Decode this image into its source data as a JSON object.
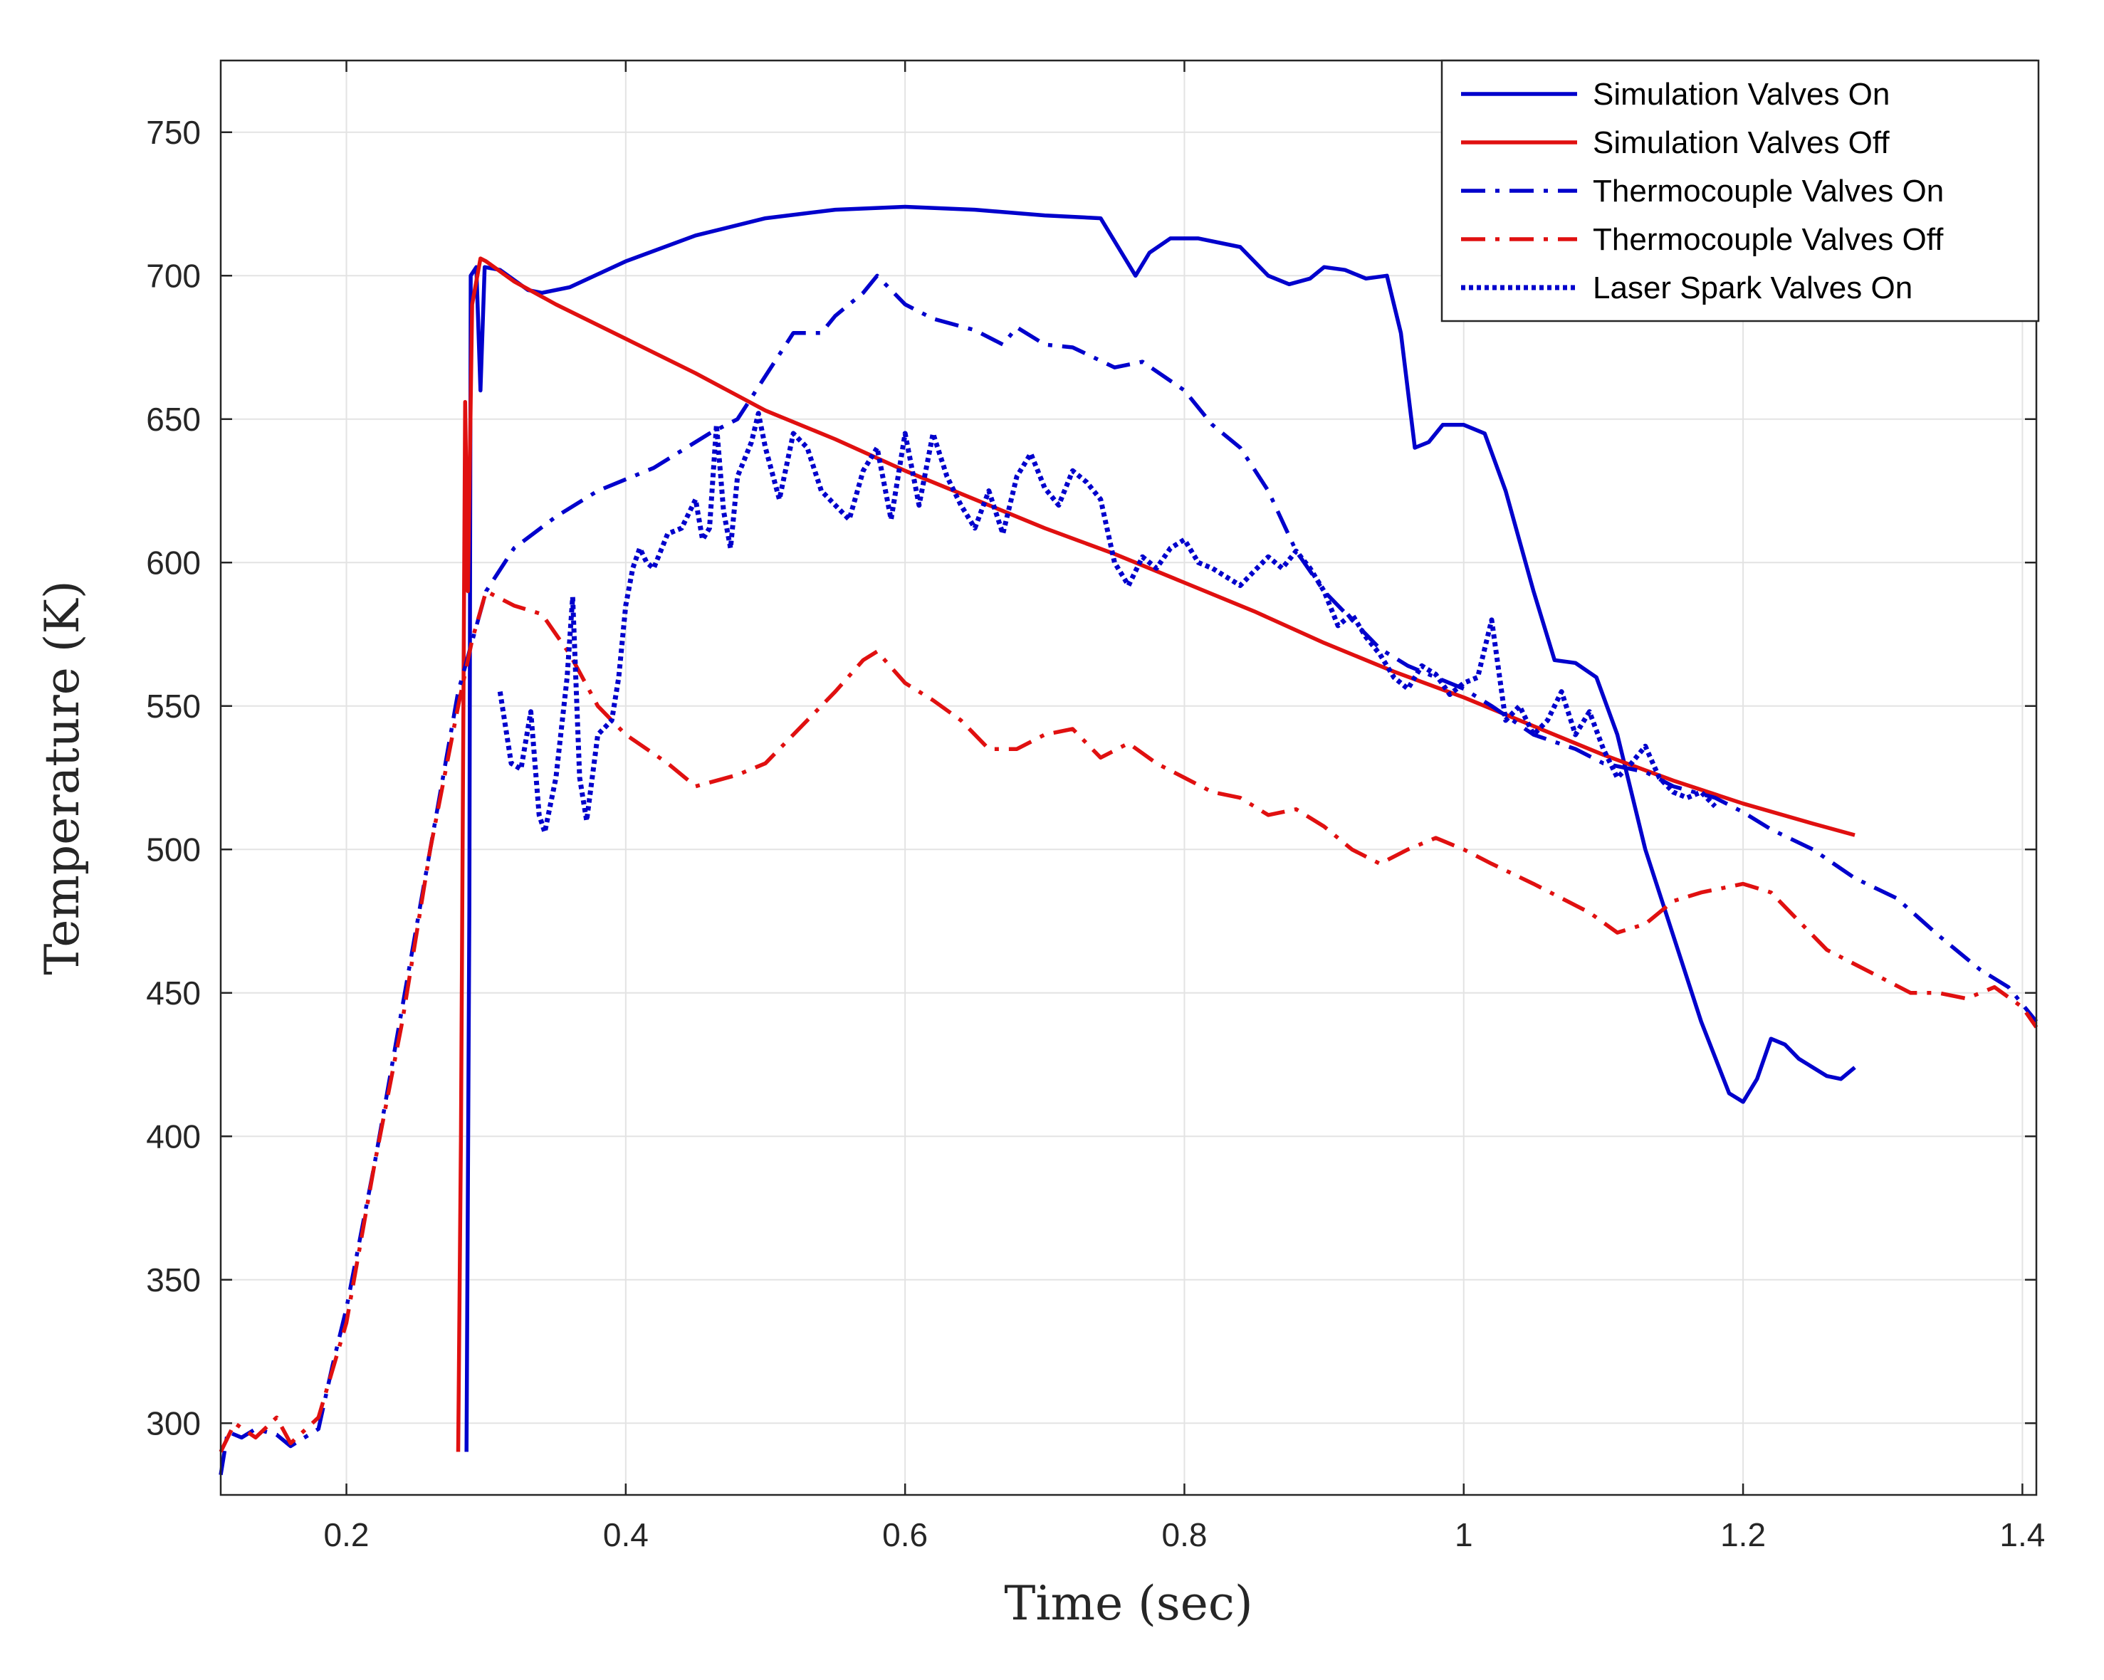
{
  "chart_data": {
    "type": "line",
    "title": "",
    "xlabel": "Time (sec)",
    "ylabel": "Temperature (K)",
    "xlim": [
      0.11,
      1.41
    ],
    "ylim": [
      275,
      775
    ],
    "xticks": [
      0.2,
      0.4,
      0.6,
      0.8,
      1,
      1.2,
      1.4
    ],
    "xtick_labels": [
      "0.2",
      "0.4",
      "0.6",
      "0.8",
      "1",
      "1.2",
      "1.4"
    ],
    "yticks": [
      300,
      350,
      400,
      450,
      500,
      550,
      600,
      650,
      700,
      750
    ],
    "ytick_labels": [
      "300",
      "350",
      "400",
      "450",
      "500",
      "550",
      "600",
      "650",
      "700",
      "750"
    ],
    "grid": true,
    "legend_position": "top-right",
    "series": [
      {
        "name": "Simulation Valves On",
        "color": "#0000cc",
        "style": "solid",
        "points": [
          [
            0.286,
            290
          ],
          [
            0.288,
            480
          ],
          [
            0.289,
            700
          ],
          [
            0.293,
            703
          ],
          [
            0.296,
            660
          ],
          [
            0.299,
            703
          ],
          [
            0.31,
            702
          ],
          [
            0.33,
            695
          ],
          [
            0.34,
            694
          ],
          [
            0.36,
            696
          ],
          [
            0.4,
            705
          ],
          [
            0.45,
            714
          ],
          [
            0.5,
            720
          ],
          [
            0.55,
            723
          ],
          [
            0.6,
            724
          ],
          [
            0.65,
            723
          ],
          [
            0.7,
            721
          ],
          [
            0.74,
            720
          ],
          [
            0.755,
            708
          ],
          [
            0.765,
            700
          ],
          [
            0.775,
            708
          ],
          [
            0.79,
            713
          ],
          [
            0.81,
            713
          ],
          [
            0.84,
            710
          ],
          [
            0.86,
            700
          ],
          [
            0.875,
            697
          ],
          [
            0.89,
            699
          ],
          [
            0.9,
            703
          ],
          [
            0.915,
            702
          ],
          [
            0.93,
            699
          ],
          [
            0.945,
            700
          ],
          [
            0.955,
            680
          ],
          [
            0.965,
            640
          ],
          [
            0.975,
            642
          ],
          [
            0.985,
            648
          ],
          [
            1.0,
            648
          ],
          [
            1.015,
            645
          ],
          [
            1.03,
            625
          ],
          [
            1.05,
            590
          ],
          [
            1.065,
            566
          ],
          [
            1.08,
            565
          ],
          [
            1.095,
            560
          ],
          [
            1.11,
            540
          ],
          [
            1.13,
            500
          ],
          [
            1.15,
            470
          ],
          [
            1.17,
            440
          ],
          [
            1.19,
            415
          ],
          [
            1.2,
            412
          ],
          [
            1.21,
            420
          ],
          [
            1.22,
            434
          ],
          [
            1.23,
            432
          ],
          [
            1.24,
            427
          ],
          [
            1.26,
            421
          ],
          [
            1.27,
            420
          ],
          [
            1.28,
            424
          ]
        ]
      },
      {
        "name": "Simulation Valves Off",
        "color": "#e01010",
        "style": "solid",
        "points": [
          [
            0.28,
            290
          ],
          [
            0.282,
            400
          ],
          [
            0.285,
            656
          ],
          [
            0.287,
            590
          ],
          [
            0.29,
            690
          ],
          [
            0.296,
            706
          ],
          [
            0.3,
            705
          ],
          [
            0.32,
            698
          ],
          [
            0.35,
            690
          ],
          [
            0.4,
            678
          ],
          [
            0.45,
            666
          ],
          [
            0.5,
            653
          ],
          [
            0.55,
            643
          ],
          [
            0.6,
            632
          ],
          [
            0.65,
            622
          ],
          [
            0.7,
            612
          ],
          [
            0.75,
            603
          ],
          [
            0.8,
            593
          ],
          [
            0.85,
            583
          ],
          [
            0.9,
            572
          ],
          [
            0.95,
            562
          ],
          [
            1.0,
            553
          ],
          [
            1.05,
            543
          ],
          [
            1.1,
            533
          ],
          [
            1.15,
            524
          ],
          [
            1.2,
            516
          ],
          [
            1.25,
            509
          ],
          [
            1.28,
            505
          ]
        ]
      },
      {
        "name": "Thermocouple Valves On",
        "color": "#0000cc",
        "style": "dashdot",
        "points": [
          [
            0.11,
            282
          ],
          [
            0.115,
            297
          ],
          [
            0.125,
            295
          ],
          [
            0.135,
            298
          ],
          [
            0.15,
            296
          ],
          [
            0.16,
            292
          ],
          [
            0.18,
            298
          ],
          [
            0.19,
            320
          ],
          [
            0.2,
            340
          ],
          [
            0.22,
            390
          ],
          [
            0.24,
            445
          ],
          [
            0.26,
            500
          ],
          [
            0.28,
            555
          ],
          [
            0.3,
            590
          ],
          [
            0.32,
            605
          ],
          [
            0.35,
            616
          ],
          [
            0.38,
            625
          ],
          [
            0.42,
            633
          ],
          [
            0.46,
            645
          ],
          [
            0.48,
            650
          ],
          [
            0.5,
            665
          ],
          [
            0.52,
            680
          ],
          [
            0.54,
            680
          ],
          [
            0.55,
            686
          ],
          [
            0.57,
            694
          ],
          [
            0.58,
            700
          ],
          [
            0.59,
            695
          ],
          [
            0.6,
            690
          ],
          [
            0.62,
            685
          ],
          [
            0.65,
            681
          ],
          [
            0.67,
            676
          ],
          [
            0.68,
            682
          ],
          [
            0.7,
            676
          ],
          [
            0.72,
            675
          ],
          [
            0.75,
            668
          ],
          [
            0.77,
            670
          ],
          [
            0.8,
            660
          ],
          [
            0.82,
            648
          ],
          [
            0.84,
            640
          ],
          [
            0.86,
            625
          ],
          [
            0.88,
            604
          ],
          [
            0.9,
            590
          ],
          [
            0.92,
            580
          ],
          [
            0.94,
            570
          ],
          [
            0.96,
            564
          ],
          [
            0.98,
            560
          ],
          [
            1.0,
            556
          ],
          [
            1.02,
            550
          ],
          [
            1.05,
            540
          ],
          [
            1.08,
            535
          ],
          [
            1.1,
            530
          ],
          [
            1.13,
            527
          ],
          [
            1.15,
            522
          ],
          [
            1.18,
            518
          ],
          [
            1.2,
            513
          ],
          [
            1.22,
            507
          ],
          [
            1.25,
            500
          ],
          [
            1.28,
            490
          ],
          [
            1.31,
            483
          ],
          [
            1.34,
            470
          ],
          [
            1.37,
            458
          ],
          [
            1.39,
            452
          ],
          [
            1.41,
            440
          ]
        ]
      },
      {
        "name": "Thermocouple Valves Off",
        "color": "#e01010",
        "style": "dashdot",
        "points": [
          [
            0.11,
            290
          ],
          [
            0.12,
            300
          ],
          [
            0.135,
            295
          ],
          [
            0.15,
            302
          ],
          [
            0.16,
            293
          ],
          [
            0.18,
            302
          ],
          [
            0.2,
            335
          ],
          [
            0.22,
            390
          ],
          [
            0.24,
            440
          ],
          [
            0.26,
            500
          ],
          [
            0.28,
            550
          ],
          [
            0.29,
            573
          ],
          [
            0.3,
            590
          ],
          [
            0.32,
            585
          ],
          [
            0.34,
            582
          ],
          [
            0.36,
            568
          ],
          [
            0.38,
            550
          ],
          [
            0.4,
            540
          ],
          [
            0.43,
            530
          ],
          [
            0.45,
            522
          ],
          [
            0.48,
            526
          ],
          [
            0.5,
            530
          ],
          [
            0.53,
            545
          ],
          [
            0.55,
            555
          ],
          [
            0.57,
            566
          ],
          [
            0.58,
            569
          ],
          [
            0.6,
            558
          ],
          [
            0.62,
            552
          ],
          [
            0.64,
            545
          ],
          [
            0.66,
            535
          ],
          [
            0.68,
            535
          ],
          [
            0.7,
            540
          ],
          [
            0.72,
            542
          ],
          [
            0.74,
            532
          ],
          [
            0.76,
            537
          ],
          [
            0.78,
            530
          ],
          [
            0.8,
            525
          ],
          [
            0.82,
            520
          ],
          [
            0.84,
            518
          ],
          [
            0.86,
            512
          ],
          [
            0.88,
            514
          ],
          [
            0.9,
            508
          ],
          [
            0.92,
            500
          ],
          [
            0.94,
            495
          ],
          [
            0.96,
            500
          ],
          [
            0.98,
            504
          ],
          [
            1.0,
            500
          ],
          [
            1.02,
            495
          ],
          [
            1.05,
            488
          ],
          [
            1.07,
            483
          ],
          [
            1.09,
            478
          ],
          [
            1.11,
            471
          ],
          [
            1.13,
            474
          ],
          [
            1.15,
            482
          ],
          [
            1.17,
            485
          ],
          [
            1.2,
            488
          ],
          [
            1.22,
            485
          ],
          [
            1.24,
            475
          ],
          [
            1.26,
            465
          ],
          [
            1.28,
            460
          ],
          [
            1.3,
            455
          ],
          [
            1.32,
            450
          ],
          [
            1.34,
            450
          ],
          [
            1.36,
            448
          ],
          [
            1.38,
            452
          ],
          [
            1.4,
            445
          ],
          [
            1.41,
            438
          ]
        ]
      },
      {
        "name": "Laser Spark Valves On",
        "color": "#0000cc",
        "style": "dotted",
        "points": [
          [
            0.31,
            555
          ],
          [
            0.318,
            530
          ],
          [
            0.325,
            528
          ],
          [
            0.332,
            548
          ],
          [
            0.338,
            512
          ],
          [
            0.342,
            506
          ],
          [
            0.35,
            525
          ],
          [
            0.358,
            560
          ],
          [
            0.362,
            588
          ],
          [
            0.367,
            525
          ],
          [
            0.372,
            510
          ],
          [
            0.38,
            540
          ],
          [
            0.39,
            545
          ],
          [
            0.395,
            560
          ],
          [
            0.4,
            585
          ],
          [
            0.405,
            598
          ],
          [
            0.41,
            605
          ],
          [
            0.415,
            600
          ],
          [
            0.42,
            598
          ],
          [
            0.43,
            610
          ],
          [
            0.44,
            612
          ],
          [
            0.45,
            622
          ],
          [
            0.455,
            608
          ],
          [
            0.46,
            612
          ],
          [
            0.465,
            648
          ],
          [
            0.47,
            618
          ],
          [
            0.475,
            605
          ],
          [
            0.48,
            630
          ],
          [
            0.49,
            642
          ],
          [
            0.495,
            652
          ],
          [
            0.5,
            640
          ],
          [
            0.51,
            622
          ],
          [
            0.52,
            645
          ],
          [
            0.53,
            640
          ],
          [
            0.54,
            625
          ],
          [
            0.55,
            620
          ],
          [
            0.56,
            615
          ],
          [
            0.57,
            632
          ],
          [
            0.58,
            640
          ],
          [
            0.59,
            615
          ],
          [
            0.6,
            645
          ],
          [
            0.61,
            620
          ],
          [
            0.62,
            645
          ],
          [
            0.63,
            630
          ],
          [
            0.64,
            620
          ],
          [
            0.65,
            612
          ],
          [
            0.66,
            625
          ],
          [
            0.67,
            610
          ],
          [
            0.68,
            630
          ],
          [
            0.69,
            638
          ],
          [
            0.7,
            626
          ],
          [
            0.71,
            620
          ],
          [
            0.72,
            632
          ],
          [
            0.73,
            628
          ],
          [
            0.74,
            622
          ],
          [
            0.75,
            600
          ],
          [
            0.76,
            592
          ],
          [
            0.77,
            602
          ],
          [
            0.78,
            598
          ],
          [
            0.79,
            605
          ],
          [
            0.8,
            608
          ],
          [
            0.81,
            600
          ],
          [
            0.82,
            598
          ],
          [
            0.83,
            595
          ],
          [
            0.84,
            592
          ],
          [
            0.85,
            597
          ],
          [
            0.86,
            602
          ],
          [
            0.87,
            598
          ],
          [
            0.88,
            604
          ],
          [
            0.89,
            598
          ],
          [
            0.9,
            590
          ],
          [
            0.91,
            578
          ],
          [
            0.92,
            582
          ],
          [
            0.93,
            574
          ],
          [
            0.94,
            568
          ],
          [
            0.95,
            560
          ],
          [
            0.96,
            556
          ],
          [
            0.97,
            564
          ],
          [
            0.98,
            561
          ],
          [
            0.99,
            554
          ],
          [
            1.0,
            558
          ],
          [
            1.01,
            560
          ],
          [
            1.02,
            580
          ],
          [
            1.03,
            545
          ],
          [
            1.04,
            550
          ],
          [
            1.05,
            540
          ],
          [
            1.06,
            545
          ],
          [
            1.07,
            555
          ],
          [
            1.08,
            540
          ],
          [
            1.09,
            548
          ],
          [
            1.1,
            535
          ],
          [
            1.11,
            525
          ],
          [
            1.12,
            530
          ],
          [
            1.13,
            536
          ],
          [
            1.14,
            525
          ],
          [
            1.15,
            520
          ],
          [
            1.16,
            518
          ],
          [
            1.17,
            520
          ],
          [
            1.18,
            515
          ]
        ]
      }
    ]
  }
}
